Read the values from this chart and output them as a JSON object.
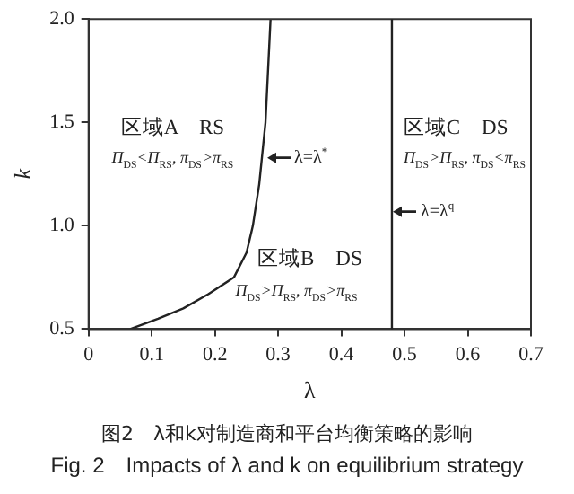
{
  "chart_data": {
    "type": "line",
    "title": "图2　λ和k对制造商和平台均衡策略的影响",
    "subtitle": "Fig. 2　Impacts of λ and k on equilibrium strategy",
    "xlabel": "λ",
    "ylabel": "k",
    "xlim": [
      0,
      0.7
    ],
    "xticks": [
      {
        "value": 0,
        "label": "0"
      },
      0.1,
      0.2,
      0.3,
      0.4,
      0.5,
      0.6,
      0.7
    ],
    "ylim": [
      0.5,
      2.0
    ],
    "yticks": [
      {
        "value": 0.5,
        "label": "0.5"
      },
      {
        "value": 1,
        "label": "1.0"
      },
      {
        "value": 1.5,
        "label": "1.5"
      },
      {
        "value": 2,
        "label": "2.0"
      }
    ],
    "series": [
      {
        "color": "#222222",
        "x": [
          0.066,
          0.11,
          0.15,
          0.19,
          0.23,
          0.25,
          0.26,
          0.27,
          0.28,
          0.288
        ],
        "values": [
          0.5,
          0.55,
          0.6,
          0.67,
          0.75,
          0.87,
          1.0,
          1.2,
          1.5,
          2.0
        ]
      }
    ],
    "ref_lines": [
      {
        "axis": "x",
        "value": 0.48,
        "label": "λ=λ$^{q}$",
        "color": "#222222"
      }
    ],
    "annotations": [
      "区域A　RS",
      "Π$_{DS}$<Π$_{RS}$, π$_{DS}$>π$_{RS}$",
      "区域C　DS",
      "Π$_{DS}$>Π$_{RS}$, π$_{DS}$<π$_{RS}$",
      "区域B　DS",
      "Π$_{DS}$>Π$_{RS}$, π$_{DS}$>π$_{RS}$",
      {
        "text": "λ=λ$^{*}$",
        "x": 0.28,
        "y": 1.33
      }
    ],
    "marker": "none",
    "line_style": "solid"
  }
}
